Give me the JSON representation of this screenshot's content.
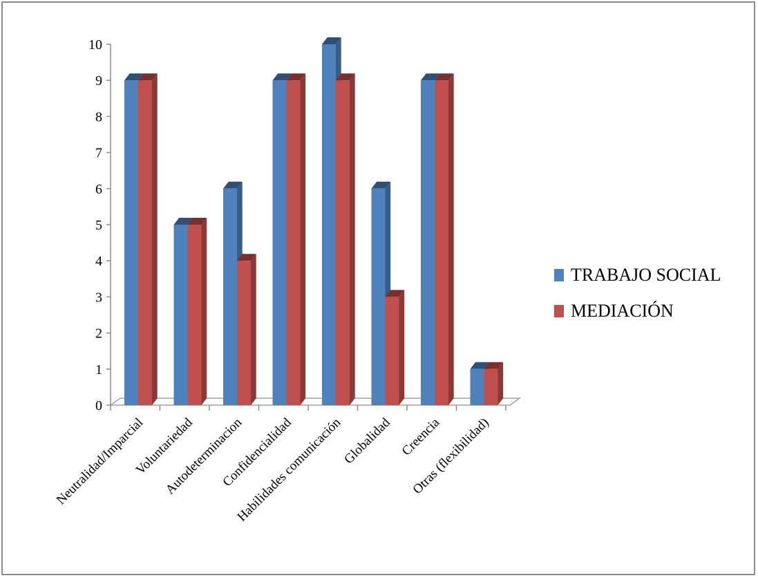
{
  "chart_data": {
    "type": "bar",
    "title": "",
    "xlabel": "",
    "ylabel": "",
    "ylim": [
      0,
      10
    ],
    "yticks": [
      0,
      1,
      2,
      3,
      4,
      5,
      6,
      7,
      8,
      9,
      10
    ],
    "categories": [
      "Neutralidad/Imparcial",
      "Voluntariedad",
      "Autodeterminacion",
      "Confidencialidad",
      "Habilidades comunicación",
      "Globalidad",
      "Creencia",
      "Otras (flexibilidad)"
    ],
    "series": [
      {
        "name": "TRABAJO SOCIAL",
        "values": [
          9,
          5,
          6,
          9,
          10,
          6,
          9,
          1
        ],
        "color": "#4f81bd",
        "side_color": "#385d8a",
        "top_color": "#2f4f78"
      },
      {
        "name": "MEDIACIÓN",
        "values": [
          9,
          5,
          4,
          9,
          9,
          3,
          9,
          1
        ],
        "color": "#c0504d",
        "side_color": "#8c3836",
        "top_color": "#7a2f2d"
      }
    ],
    "grid": false,
    "style": "3d-clustered-column",
    "legend_position": "right"
  }
}
